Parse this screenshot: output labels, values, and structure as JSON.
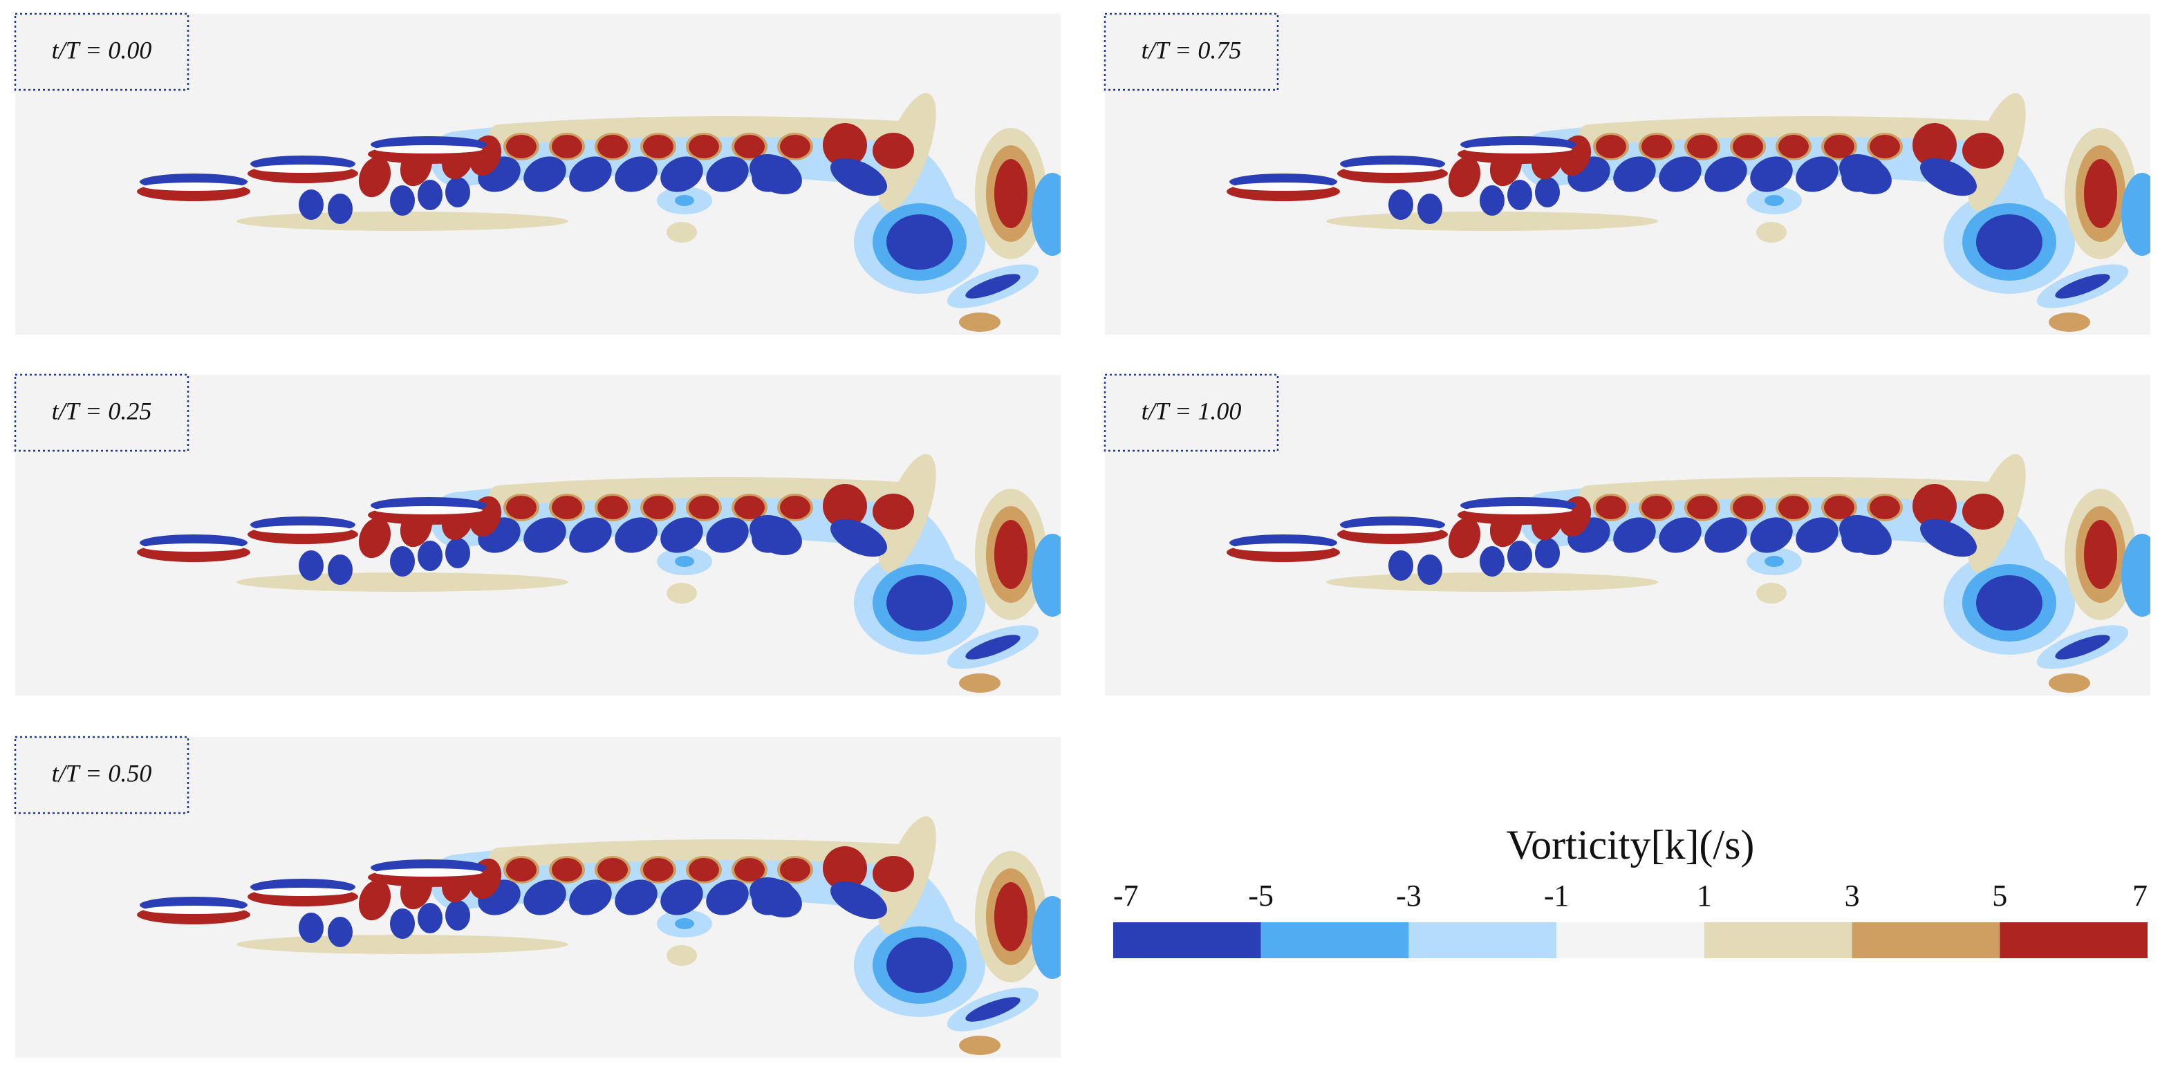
{
  "panels": [
    {
      "label": "t/T = 0.00"
    },
    {
      "label": "t/T = 0.25"
    },
    {
      "label": "t/T = 0.50"
    },
    {
      "label": "t/T = 0.75"
    },
    {
      "label": "t/T = 1.00"
    }
  ],
  "colorbar": {
    "title": "Vorticity[k](/s)",
    "ticks": [
      -7,
      -5,
      -3,
      -1,
      1,
      3,
      5,
      7
    ],
    "colors": [
      "#2a3fb5",
      "#52adf0",
      "#b5dcfa",
      "#f4f4f4",
      "#e3dab8",
      "#cf9f62",
      "#ad2421"
    ]
  }
}
